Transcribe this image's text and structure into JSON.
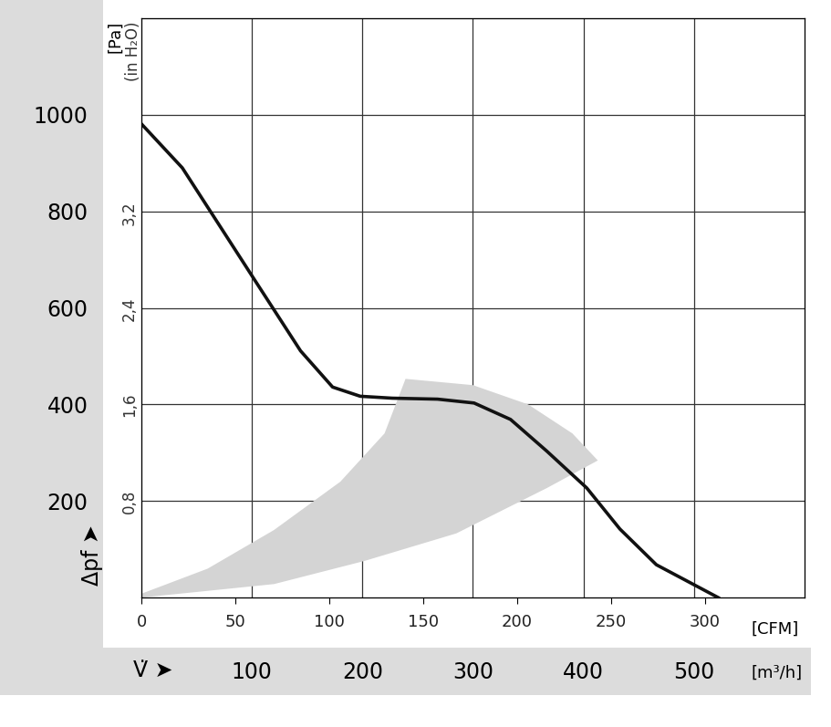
{
  "chart_data": {
    "type": "line",
    "y_label": "[Pa]",
    "y2_label": "(in H₂O)",
    "y_symbol": "Δpf ➤",
    "x_label": "[m³/h]",
    "x2_label": "[CFM]",
    "x_symbol": "V̇ ➤",
    "xlim": [
      0,
      600
    ],
    "xticks": [
      100,
      200,
      300,
      400,
      500
    ],
    "x2lim": [
      0,
      353.1
    ],
    "x2ticks": [
      0,
      50,
      100,
      150,
      200,
      250,
      300
    ],
    "ylim": [
      0,
      1200
    ],
    "yticks": [
      200,
      400,
      600,
      800,
      1000
    ],
    "y2lim": [
      0,
      4.818
    ],
    "y2ticks": [
      {
        "value": 0.8,
        "label": "0,8"
      },
      {
        "value": 1.6,
        "label": "1,6"
      },
      {
        "value": 2.4,
        "label": "2,4"
      },
      {
        "value": 3.2,
        "label": "3,2"
      }
    ],
    "grid": true,
    "color": "#111111",
    "x": [
      0,
      37,
      101,
      144,
      173,
      198,
      227,
      268,
      301,
      334,
      367,
      403,
      433,
      466,
      522
    ],
    "values": [
      981,
      890,
      663,
      511,
      436,
      417,
      413,
      411,
      403,
      369,
      303,
      227,
      142,
      68,
      0
    ],
    "operating_range": {
      "color": "#d4d4d4",
      "x": [
        0,
        60,
        120,
        180,
        220,
        239,
        300,
        350,
        390,
        413,
        367,
        285,
        202,
        120,
        0
      ],
      "y": [
        8,
        60,
        140,
        240,
        340,
        453,
        440,
        400,
        340,
        284,
        227,
        133,
        76,
        28,
        0
      ]
    }
  }
}
